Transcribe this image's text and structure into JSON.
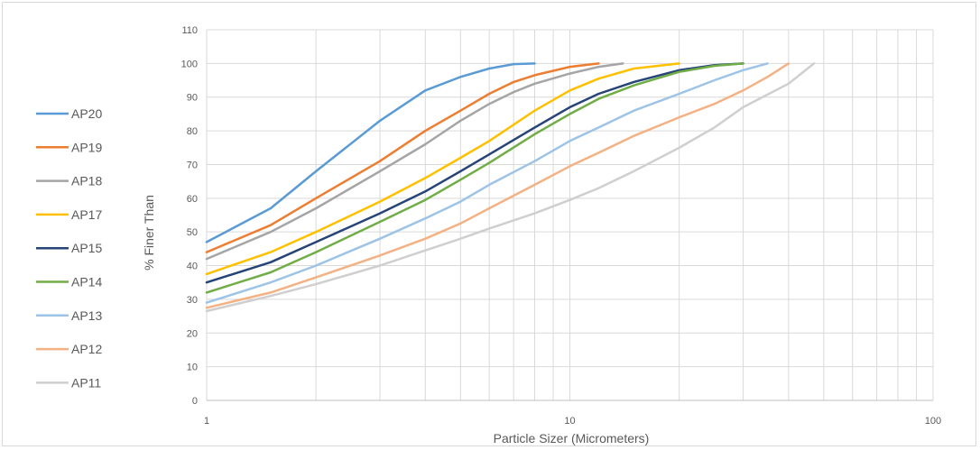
{
  "chart_data": {
    "type": "line",
    "x_scale": "log",
    "xlim": [
      1,
      100
    ],
    "ylim": [
      0,
      110
    ],
    "xlabel": "Particle Sizer (Micrometers)",
    "ylabel": "% Finer Than",
    "x_ticks": [
      {
        "value": 1,
        "label": "1"
      },
      {
        "value": 10,
        "label": "10"
      },
      {
        "value": 100,
        "label": "100"
      }
    ],
    "y_ticks": [
      0,
      10,
      20,
      30,
      40,
      50,
      60,
      70,
      80,
      90,
      100,
      110
    ],
    "grid": true,
    "legend_position": "left",
    "series": [
      {
        "name": "AP20",
        "color": "#5b9bd5",
        "points": [
          [
            1,
            47
          ],
          [
            1.5,
            57
          ],
          [
            2,
            68
          ],
          [
            3,
            83
          ],
          [
            4,
            92
          ],
          [
            5,
            96
          ],
          [
            6,
            98.5
          ],
          [
            7,
            99.8
          ],
          [
            8,
            100
          ]
        ]
      },
      {
        "name": "AP19",
        "color": "#ed7d31",
        "points": [
          [
            1,
            44
          ],
          [
            1.5,
            52
          ],
          [
            2,
            60
          ],
          [
            3,
            71
          ],
          [
            4,
            80
          ],
          [
            5,
            86
          ],
          [
            6,
            91
          ],
          [
            7,
            94.5
          ],
          [
            8,
            96.5
          ],
          [
            10,
            99
          ],
          [
            12,
            100
          ]
        ]
      },
      {
        "name": "AP18",
        "color": "#a5a5a5",
        "points": [
          [
            1,
            42
          ],
          [
            1.5,
            50
          ],
          [
            2,
            57
          ],
          [
            3,
            68
          ],
          [
            4,
            76
          ],
          [
            5,
            83
          ],
          [
            6,
            88
          ],
          [
            7,
            91.5
          ],
          [
            8,
            94
          ],
          [
            10,
            97
          ],
          [
            12,
            99
          ],
          [
            14,
            100
          ]
        ]
      },
      {
        "name": "AP17",
        "color": "#ffc000",
        "points": [
          [
            1,
            37.5
          ],
          [
            1.5,
            44
          ],
          [
            2,
            50
          ],
          [
            3,
            59
          ],
          [
            4,
            66
          ],
          [
            5,
            72
          ],
          [
            6,
            77
          ],
          [
            8,
            86
          ],
          [
            10,
            92
          ],
          [
            12,
            95.5
          ],
          [
            15,
            98.5
          ],
          [
            20,
            100
          ]
        ]
      },
      {
        "name": "AP15",
        "color": "#264478",
        "points": [
          [
            1,
            35
          ],
          [
            1.5,
            41
          ],
          [
            2,
            47
          ],
          [
            3,
            55.5
          ],
          [
            4,
            62
          ],
          [
            5,
            68
          ],
          [
            6,
            73
          ],
          [
            8,
            81
          ],
          [
            10,
            87
          ],
          [
            12,
            91
          ],
          [
            15,
            94.5
          ],
          [
            20,
            98
          ],
          [
            25,
            99.5
          ],
          [
            30,
            100
          ]
        ]
      },
      {
        "name": "AP14",
        "color": "#70ad47",
        "points": [
          [
            1,
            32
          ],
          [
            1.5,
            38
          ],
          [
            2,
            44
          ],
          [
            3,
            53
          ],
          [
            4,
            59.5
          ],
          [
            5,
            65.5
          ],
          [
            6,
            70.5
          ],
          [
            8,
            79
          ],
          [
            10,
            85
          ],
          [
            12,
            89.5
          ],
          [
            15,
            93.5
          ],
          [
            20,
            97.5
          ],
          [
            25,
            99.3
          ],
          [
            30,
            100
          ]
        ]
      },
      {
        "name": "AP13",
        "color": "#9dc3e6",
        "points": [
          [
            1,
            29
          ],
          [
            1.5,
            35
          ],
          [
            2,
            40
          ],
          [
            3,
            48
          ],
          [
            4,
            54
          ],
          [
            5,
            59
          ],
          [
            6,
            64
          ],
          [
            8,
            71
          ],
          [
            10,
            77
          ],
          [
            12,
            81
          ],
          [
            15,
            86
          ],
          [
            20,
            91
          ],
          [
            25,
            95
          ],
          [
            30,
            98
          ],
          [
            35,
            100
          ]
        ]
      },
      {
        "name": "AP12",
        "color": "#f4b183",
        "points": [
          [
            1,
            27.5
          ],
          [
            1.5,
            32
          ],
          [
            2,
            36.5
          ],
          [
            3,
            43
          ],
          [
            4,
            48
          ],
          [
            5,
            52.5
          ],
          [
            6,
            57
          ],
          [
            8,
            64
          ],
          [
            10,
            69.5
          ],
          [
            12,
            73.5
          ],
          [
            15,
            78.5
          ],
          [
            20,
            84
          ],
          [
            25,
            88
          ],
          [
            30,
            92
          ],
          [
            35,
            96
          ],
          [
            40,
            100
          ]
        ]
      },
      {
        "name": "AP11",
        "color": "#d0cece",
        "points": [
          [
            1,
            26.5
          ],
          [
            1.5,
            31
          ],
          [
            2,
            34.5
          ],
          [
            3,
            40
          ],
          [
            4,
            44.5
          ],
          [
            5,
            48
          ],
          [
            6,
            51
          ],
          [
            8,
            55.5
          ],
          [
            10,
            59.5
          ],
          [
            12,
            63
          ],
          [
            15,
            68
          ],
          [
            20,
            75
          ],
          [
            25,
            81
          ],
          [
            30,
            87
          ],
          [
            40,
            94
          ],
          [
            47,
            100
          ]
        ]
      }
    ]
  }
}
